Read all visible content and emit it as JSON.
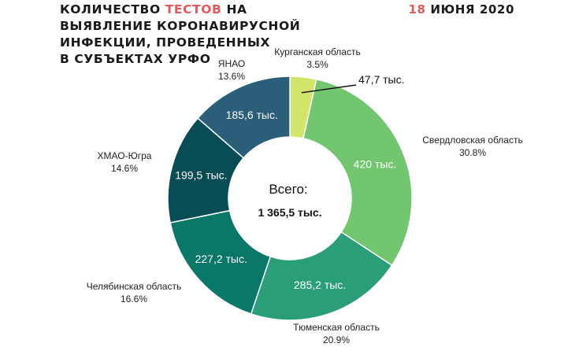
{
  "header": {
    "title_part1": "КОЛИЧЕСТВО ",
    "title_accent": "ТЕСТОВ",
    "title_part2": " НА",
    "title_line2": "ВЫЯВЛЕНИЕ КОРОНАВИРУСНОЙ",
    "title_line3": "ИНФЕКЦИИ, ПРОВЕДЕННЫХ",
    "title_line4": "В СУБЪЕКТАХ УРФО",
    "date_day": "18",
    "date_rest": " ИЮНЯ 2020",
    "accent_color": "#e05a5a"
  },
  "chart_data": {
    "type": "pie",
    "donut": true,
    "center_label": "Всего:",
    "center_value": "1 365,5 тыс.",
    "slices": [
      {
        "category": "Курганская область",
        "percent": "3.5%",
        "value": 47.7,
        "value_label": "47,7 тыс.",
        "color": "#d2e46a"
      },
      {
        "category": "Свердловская область",
        "percent": "30.8%",
        "value": 420,
        "value_label": "420 тыс.",
        "color": "#72c66f"
      },
      {
        "category": "Тюменская область",
        "percent": "20.9%",
        "value": 285.2,
        "value_label": "285,2 тыс.",
        "color": "#2a9e77"
      },
      {
        "category": "Челябинская область",
        "percent": "16.6%",
        "value": 227.2,
        "value_label": "227,2 тыс.",
        "color": "#097869"
      },
      {
        "category": "ХМАО-Югра",
        "percent": "14.6%",
        "value": 199.5,
        "value_label": "199,5 тыс.",
        "color": "#084c56"
      },
      {
        "category": "ЯНАО",
        "percent": "13.6%",
        "value": 185.6,
        "value_label": "185,6 тыс.",
        "color": "#2b5e78"
      }
    ]
  }
}
